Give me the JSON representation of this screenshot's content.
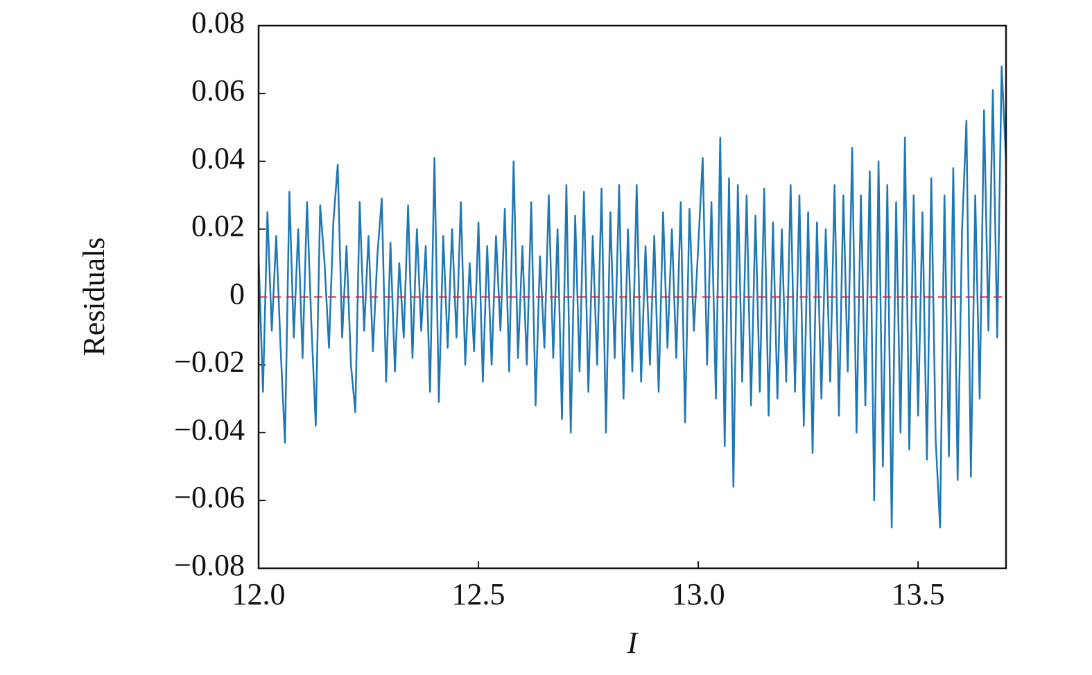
{
  "chart_data": {
    "type": "line",
    "x_label": "I",
    "y_label": "Residuals",
    "x": [
      12,
      12.01,
      12.02,
      12.03,
      12.04,
      12.05,
      12.06,
      12.07,
      12.08,
      12.09,
      12.1,
      12.11,
      12.12,
      12.13,
      12.14,
      12.15,
      12.16,
      12.17,
      12.18,
      12.19,
      12.2,
      12.21,
      12.22,
      12.23,
      12.24,
      12.25,
      12.26,
      12.27,
      12.28,
      12.29,
      12.3,
      12.31,
      12.32,
      12.33,
      12.34,
      12.35,
      12.36,
      12.37,
      12.38,
      12.39,
      12.4,
      12.41,
      12.42,
      12.43,
      12.44,
      12.45,
      12.46,
      12.47,
      12.48,
      12.49,
      12.5,
      12.51,
      12.52,
      12.53,
      12.54,
      12.55,
      12.56,
      12.57,
      12.58,
      12.59,
      12.6,
      12.61,
      12.62,
      12.63,
      12.64,
      12.65,
      12.66,
      12.67,
      12.68,
      12.69,
      12.7,
      12.71,
      12.72,
      12.73,
      12.74,
      12.75,
      12.76,
      12.77,
      12.78,
      12.79,
      12.8,
      12.81,
      12.82,
      12.83,
      12.84,
      12.85,
      12.86,
      12.87,
      12.88,
      12.89,
      12.9,
      12.91,
      12.92,
      12.93,
      12.94,
      12.95,
      12.96,
      12.97,
      12.98,
      12.99,
      13,
      13.01,
      13.02,
      13.03,
      13.04,
      13.05,
      13.06,
      13.07,
      13.08,
      13.09,
      13.1,
      13.11,
      13.12,
      13.13,
      13.14,
      13.15,
      13.16,
      13.17,
      13.18,
      13.19,
      13.2,
      13.21,
      13.22,
      13.23,
      13.24,
      13.25,
      13.26,
      13.27,
      13.28,
      13.29,
      13.3,
      13.31,
      13.32,
      13.33,
      13.34,
      13.35,
      13.36,
      13.37,
      13.38,
      13.39,
      13.4,
      13.41,
      13.42,
      13.43,
      13.44,
      13.45,
      13.46,
      13.47,
      13.48,
      13.49,
      13.5,
      13.51,
      13.52,
      13.53,
      13.54,
      13.55,
      13.56,
      13.57,
      13.58,
      13.59,
      13.6,
      13.61,
      13.62,
      13.63,
      13.64,
      13.65,
      13.66,
      13.67,
      13.68,
      13.69,
      13.7
    ],
    "series": [
      {
        "color": "#1f77b4",
        "values": [
          0.012,
          -0.028,
          0.025,
          -0.01,
          0.018,
          -0.015,
          -0.043,
          0.031,
          -0.012,
          0.02,
          -0.018,
          0.028,
          -0.008,
          -0.038,
          0.027,
          0.01,
          -0.015,
          0.022,
          0.039,
          -0.012,
          0.015,
          -0.02,
          -0.034,
          0.028,
          -0.01,
          0.018,
          -0.016,
          0.012,
          0.029,
          -0.025,
          0.016,
          -0.022,
          0.01,
          -0.012,
          0.027,
          -0.018,
          0.02,
          -0.01,
          0.015,
          -0.028,
          0.041,
          -0.031,
          0.018,
          -0.015,
          0.02,
          -0.012,
          0.028,
          -0.02,
          0.01,
          -0.016,
          0.022,
          -0.025,
          0.015,
          -0.02,
          0.018,
          -0.01,
          0.026,
          -0.022,
          0.04,
          -0.018,
          0.015,
          -0.02,
          0.028,
          -0.032,
          0.012,
          -0.015,
          0.03,
          -0.018,
          0.02,
          -0.036,
          0.033,
          -0.04,
          0.024,
          -0.022,
          0.031,
          -0.028,
          0.018,
          -0.02,
          0.032,
          -0.04,
          0.025,
          -0.018,
          0.033,
          -0.03,
          0.02,
          -0.022,
          0.033,
          -0.025,
          0.015,
          -0.02,
          0.018,
          -0.028,
          0.025,
          -0.015,
          0.02,
          -0.018,
          0.028,
          -0.037,
          0.026,
          -0.01,
          0.015,
          0.041,
          -0.02,
          0.028,
          -0.03,
          0.047,
          -0.044,
          0.035,
          -0.056,
          0.033,
          -0.025,
          0.03,
          -0.032,
          0.024,
          -0.028,
          0.032,
          -0.035,
          0.022,
          -0.03,
          0.02,
          -0.025,
          0.033,
          -0.028,
          0.03,
          -0.038,
          0.025,
          -0.046,
          0.022,
          -0.03,
          0.02,
          -0.025,
          0.033,
          -0.035,
          0.03,
          -0.022,
          0.044,
          -0.04,
          0.03,
          -0.032,
          0.037,
          -0.06,
          0.04,
          -0.05,
          0.033,
          -0.068,
          0.028,
          -0.04,
          0.047,
          -0.045,
          0.03,
          -0.035,
          0.025,
          -0.048,
          0.035,
          -0.042,
          -0.068,
          0.03,
          -0.047,
          0.038,
          -0.054,
          0.02,
          0.052,
          -0.053,
          0.03,
          -0.03,
          0.055,
          -0.01,
          0.061,
          -0.012,
          0.068,
          0.04
        ]
      }
    ],
    "reference_line": {
      "value": 0,
      "color": "#d62728",
      "style": "dashed"
    },
    "xlim": [
      12,
      13.7
    ],
    "xticks": [
      {
        "value": 12,
        "label": "12.0"
      },
      12.5,
      {
        "value": 13,
        "label": "13.0"
      },
      13.5
    ],
    "ylim": [
      -0.08,
      0.08
    ],
    "yticks": [
      {
        "value": -0.08,
        "label": "−0.08"
      },
      {
        "value": -0.06,
        "label": "−0.06"
      },
      {
        "value": -0.04,
        "label": "−0.04"
      },
      {
        "value": -0.02,
        "label": "−0.02"
      },
      0,
      0.02,
      0.04,
      0.06,
      0.08
    ],
    "grid": false
  }
}
